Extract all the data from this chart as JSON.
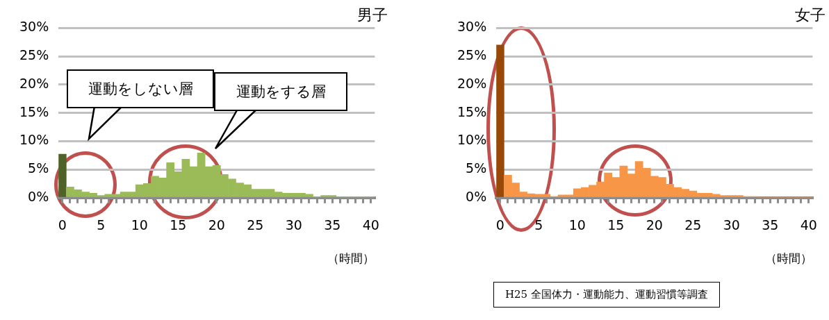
{
  "chart_data": [
    {
      "type": "bar",
      "title": "男子",
      "xlabel": "（時間）",
      "grid": "y",
      "categories": [
        "0",
        null,
        null,
        null,
        null,
        "5",
        null,
        null,
        null,
        null,
        "10",
        null,
        null,
        null,
        null,
        "15",
        null,
        null,
        null,
        null,
        "20",
        null,
        null,
        null,
        null,
        "25",
        null,
        null,
        null,
        null,
        "30",
        null,
        null,
        null,
        null,
        "35",
        null,
        null,
        null,
        null,
        "40"
      ],
      "values": [
        7.7,
        1.9,
        1.4,
        1.0,
        0.8,
        0.4,
        0.6,
        0.6,
        1.0,
        1.0,
        2.3,
        2.5,
        3.8,
        3.5,
        6.2,
        4.6,
        6.8,
        5.5,
        7.9,
        5.5,
        5.7,
        4.1,
        3.3,
        2.6,
        2.3,
        1.5,
        1.5,
        1.5,
        1.0,
        0.8,
        0.8,
        0.8,
        0.6,
        0.1,
        0.4,
        0.4,
        0.1,
        0.1,
        0.1,
        0.1,
        0.1
      ],
      "colors": [
        "#4f6228",
        "#9bbb59",
        "#9bbb59",
        "#9bbb59",
        "#9bbb59",
        "#9bbb59",
        "#9bbb59",
        "#9bbb59",
        "#9bbb59",
        "#9bbb59",
        "#9bbb59",
        "#9bbb59",
        "#9bbb59",
        "#9bbb59",
        "#9bbb59",
        "#9bbb59",
        "#9bbb59",
        "#9bbb59",
        "#9bbb59",
        "#9bbb59",
        "#9bbb59",
        "#9bbb59",
        "#9bbb59",
        "#9bbb59",
        "#9bbb59",
        "#9bbb59",
        "#9bbb59",
        "#9bbb59",
        "#9bbb59",
        "#9bbb59",
        "#9bbb59",
        "#9bbb59",
        "#9bbb59",
        "#9bbb59",
        "#9bbb59",
        "#9bbb59",
        "#9bbb59",
        "#9bbb59",
        "#9bbb59",
        "#9bbb59",
        "#9bbb59"
      ],
      "ylim": [
        0,
        30
      ],
      "yticks": [
        {
          "value": 0,
          "label": "0%"
        },
        {
          "value": 5,
          "label": "5%"
        },
        {
          "value": 10,
          "label": "10%"
        },
        {
          "value": 15,
          "label": "15%"
        },
        {
          "value": 20,
          "label": "20%"
        },
        {
          "value": 25,
          "label": "25%"
        },
        {
          "value": 30,
          "label": "30%"
        }
      ],
      "annotations": [
        "運動をしない層",
        "運動をする層"
      ]
    },
    {
      "type": "bar",
      "title": "女子",
      "xlabel": "（時間）",
      "grid": "y",
      "categories": [
        "0",
        null,
        null,
        null,
        null,
        "5",
        null,
        null,
        null,
        null,
        "10",
        null,
        null,
        null,
        null,
        "15",
        null,
        null,
        null,
        null,
        "20",
        null,
        null,
        null,
        null,
        "25",
        null,
        null,
        null,
        null,
        "30",
        null,
        null,
        null,
        null,
        "35",
        null,
        null,
        null,
        null,
        "40"
      ],
      "values": [
        27.0,
        4.0,
        2.6,
        1.0,
        0.7,
        0.6,
        0.6,
        0.2,
        0.5,
        0.5,
        1.6,
        1.8,
        2.2,
        2.8,
        4.4,
        3.6,
        5.6,
        4.2,
        6.4,
        5.2,
        3.8,
        3.6,
        2.4,
        1.8,
        1.5,
        1.2,
        0.8,
        0.8,
        0.6,
        0.4,
        0.4,
        0.4,
        0.2,
        0.2,
        0,
        0,
        0,
        0,
        0,
        0,
        0
      ],
      "colors": [
        "#984807",
        "#f79646",
        "#f79646",
        "#f79646",
        "#f79646",
        "#f79646",
        "#f79646",
        "#f79646",
        "#f79646",
        "#f79646",
        "#f79646",
        "#f79646",
        "#f79646",
        "#f79646",
        "#f79646",
        "#f79646",
        "#f79646",
        "#f79646",
        "#f79646",
        "#f79646",
        "#f79646",
        "#f79646",
        "#f79646",
        "#f79646",
        "#f79646",
        "#f79646",
        "#f79646",
        "#f79646",
        "#f79646",
        "#f79646",
        "#f79646",
        "#f79646",
        "#f79646",
        "#f79646",
        "#f79646",
        "#f79646",
        "#f79646",
        "#f79646",
        "#f79646",
        "#f79646",
        "#f79646"
      ],
      "ylim": [
        0,
        30
      ],
      "yticks": [
        {
          "value": 0,
          "label": "0%"
        },
        {
          "value": 5,
          "label": "5%"
        },
        {
          "value": 10,
          "label": "10%"
        },
        {
          "value": 15,
          "label": "15%"
        },
        {
          "value": 20,
          "label": "20%"
        },
        {
          "value": 25,
          "label": "25%"
        },
        {
          "value": 30,
          "label": "30%"
        }
      ],
      "annotations": [
        "H25 全国体力・運動能力、運動習慣等調査"
      ]
    }
  ]
}
